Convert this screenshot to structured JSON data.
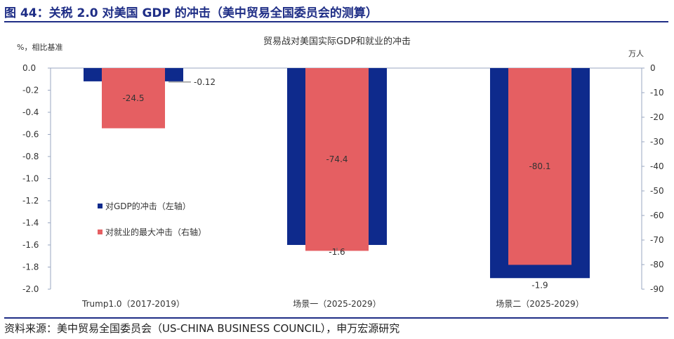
{
  "figure_title": "图 44：关税 2.0 对美国 GDP 的冲击（美中贸易全国委员会的测算）",
  "source": "资料来源：美中贸易全国委员会（US-CHINA BUSINESS COUNCIL），申万宏源研究",
  "chart_data": {
    "type": "bar",
    "title": "贸易战对美国实际GDP和就业的冲击",
    "categories": [
      "Trump1.0（2017-2019）",
      "场景一（2025-2029）",
      "场景二（2025-2029）"
    ],
    "series": [
      {
        "name": "对GDP的冲击（左轴）",
        "axis": "left",
        "values": [
          -0.12,
          -1.6,
          -1.9
        ],
        "labels": [
          "-0.12",
          "-1.6",
          "-1.9"
        ],
        "color": "#0e2a8c"
      },
      {
        "name": "对就业的最大冲击（右轴）",
        "axis": "right",
        "values": [
          -24.5,
          -74.4,
          -80.1
        ],
        "labels": [
          "-24.5",
          "-74.4",
          "-80.1"
        ],
        "color": "#e55f62"
      }
    ],
    "ylabel_left": "%，相比基准",
    "ylabel_right": "万人",
    "ylim_left": [
      -2.0,
      0.0
    ],
    "yticks_left": [
      "0.0",
      "-0.2",
      "-0.4",
      "-0.6",
      "-0.8",
      "-1.0",
      "-1.2",
      "-1.4",
      "-1.6",
      "-1.8",
      "-2.0"
    ],
    "ylim_right": [
      -90,
      0
    ],
    "yticks_right": [
      "0",
      "-10",
      "-20",
      "-30",
      "-40",
      "-50",
      "-60",
      "-70",
      "-80",
      "-90"
    ],
    "legend_position": "left-middle",
    "grid": false
  }
}
